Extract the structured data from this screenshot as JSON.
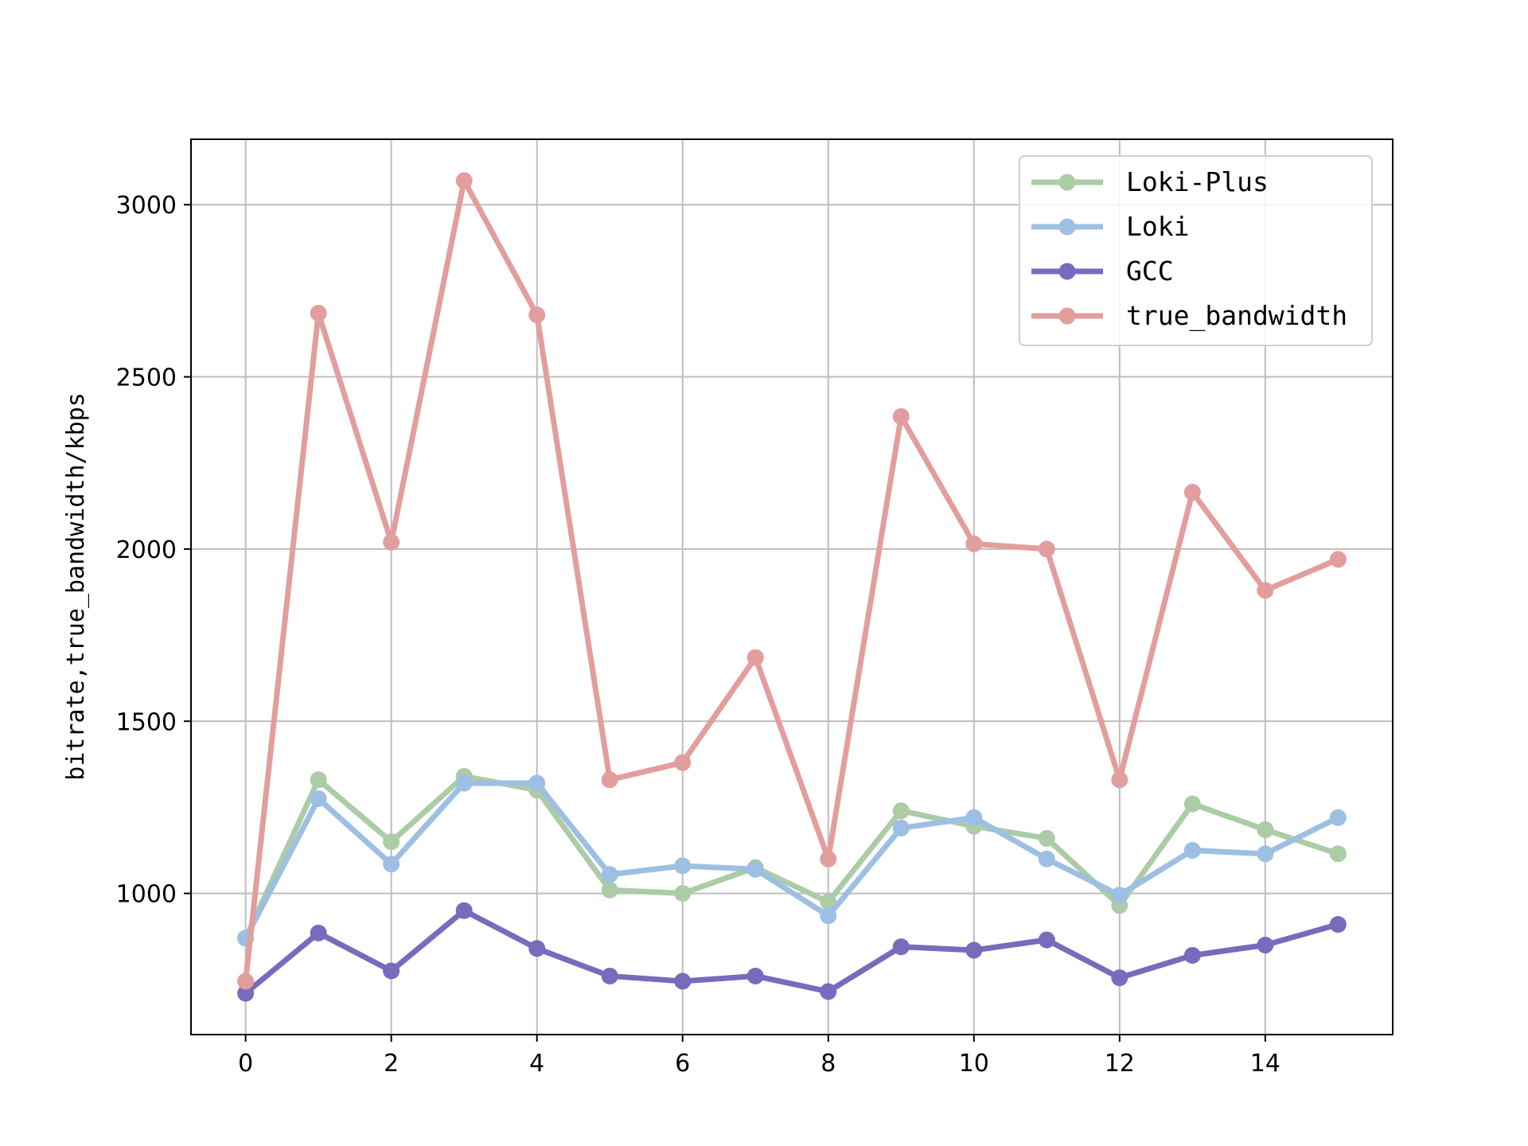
{
  "chart_data": {
    "type": "line",
    "title": "",
    "xlabel": "",
    "ylabel": "bitrate,true_bandwidth/kbps",
    "x": [
      0,
      1,
      2,
      3,
      4,
      5,
      6,
      7,
      8,
      9,
      10,
      11,
      12,
      13,
      14,
      15
    ],
    "xlim": [
      -0.75,
      15.75
    ],
    "ylim": [
      590,
      3190
    ],
    "xticks": [
      0,
      2,
      4,
      6,
      8,
      10,
      12,
      14
    ],
    "yticks": [
      1000,
      1500,
      2000,
      2500,
      3000
    ],
    "grid": true,
    "legend_position": "top-right",
    "series": [
      {
        "name": "Loki-Plus",
        "color": "#abcca5",
        "values": [
          870,
          1330,
          1150,
          1340,
          1300,
          1010,
          1000,
          1075,
          975,
          1240,
          1195,
          1160,
          965,
          1260,
          1185,
          1115
        ]
      },
      {
        "name": "Loki",
        "color": "#9dbfe3",
        "values": [
          870,
          1275,
          1085,
          1320,
          1320,
          1055,
          1080,
          1070,
          935,
          1190,
          1220,
          1100,
          995,
          1125,
          1115,
          1220
        ]
      },
      {
        "name": "GCC",
        "color": "#776bbd",
        "values": [
          710,
          885,
          775,
          950,
          840,
          760,
          745,
          760,
          715,
          845,
          835,
          865,
          755,
          820,
          850,
          910
        ]
      },
      {
        "name": "true_bandwidth",
        "color": "#e29e9d",
        "values": [
          745,
          2685,
          2020,
          3070,
          2680,
          1330,
          1380,
          1685,
          1100,
          2385,
          2015,
          2000,
          1330,
          2165,
          1880,
          1970
        ]
      }
    ]
  }
}
